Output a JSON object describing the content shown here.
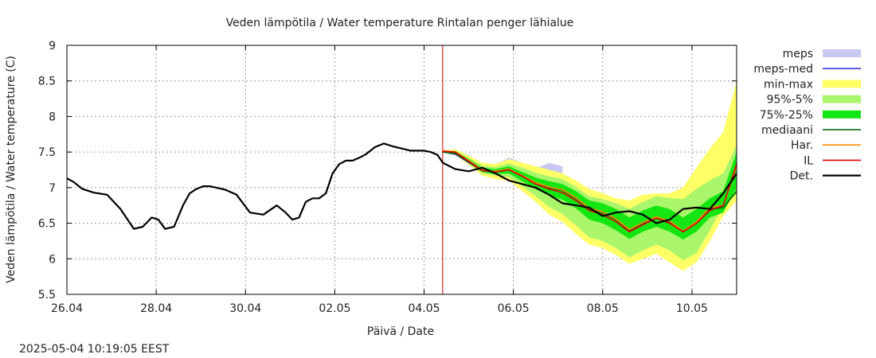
{
  "chart_data": {
    "type": "line",
    "title": "Veden lämpötila / Water temperature Rintalan penger lähialue",
    "xlabel": "Päivä / Date",
    "ylabel": "Veden lämpötila / Water temperature (C)",
    "timestamp": "2025-05-04 10:19:05 EEST",
    "x_ticks": [
      "26.04",
      "28.04",
      "30.04",
      "02.05",
      "04.05",
      "06.05",
      "08.05",
      "10.05"
    ],
    "y_ticks": [
      "5.5",
      "6",
      "6.5",
      "7",
      "7.5",
      "8",
      "8.5",
      "9"
    ],
    "xlim": [
      "2025-04-26",
      "2025-05-11"
    ],
    "ylim": [
      5.5,
      9
    ],
    "grid": true,
    "legend_position": "right",
    "forecast_start": "2025-05-04 10:00",
    "colors": {
      "meps": "#c8c8f0",
      "meps_med": "#3a3ad0",
      "minmax": "#ffff66",
      "p95_5": "#a9f56b",
      "p75_25": "#13e613",
      "median": "#006400",
      "har": "#ff8c00",
      "il": "#dd0000",
      "det": "#000000",
      "forecast_line": "#cc0000"
    },
    "legend": [
      {
        "key": "meps",
        "label": "meps",
        "kind": "band"
      },
      {
        "key": "meps_med",
        "label": "meps-med",
        "kind": "line"
      },
      {
        "key": "minmax",
        "label": "min-max",
        "kind": "band"
      },
      {
        "key": "p95_5",
        "label": "95%-5%",
        "kind": "band"
      },
      {
        "key": "p75_25",
        "label": "75%-25%",
        "kind": "band"
      },
      {
        "key": "median",
        "label": "mediaani",
        "kind": "line"
      },
      {
        "key": "har",
        "label": "Har.",
        "kind": "line"
      },
      {
        "key": "il",
        "label": "IL",
        "kind": "line"
      },
      {
        "key": "det",
        "label": "Det.",
        "kind": "line"
      }
    ],
    "forecast_x": [
      8.42,
      8.7,
      9.0,
      9.3,
      9.6,
      9.9,
      10.2,
      10.5,
      10.8,
      11.1,
      11.4,
      11.7,
      12.0,
      12.3,
      12.6,
      12.9,
      13.2,
      13.5,
      13.8,
      14.1,
      14.4,
      14.7,
      15.0
    ],
    "series": [
      {
        "name": "Det.",
        "key": "det",
        "x": [
          0,
          0.15,
          0.35,
          0.6,
          0.9,
          1.2,
          1.5,
          1.7,
          1.9,
          2.05,
          2.2,
          2.4,
          2.6,
          2.75,
          2.9,
          3.05,
          3.2,
          3.35,
          3.55,
          3.8,
          4.1,
          4.4,
          4.7,
          4.9,
          5.05,
          5.2,
          5.35,
          5.5,
          5.65,
          5.8,
          5.95,
          6.1,
          6.25,
          6.4,
          6.55,
          6.7,
          6.9,
          7.1,
          7.3,
          7.5,
          7.7,
          7.85,
          8.0,
          8.15,
          8.3,
          8.42,
          8.7,
          9.0,
          9.3,
          9.6,
          9.9,
          10.2,
          10.5,
          10.8,
          11.1,
          11.4,
          11.7,
          12.0,
          12.3,
          12.6,
          12.9,
          13.2,
          13.5,
          13.8,
          14.1,
          14.4,
          14.7,
          15.0
        ],
        "y": [
          7.13,
          7.08,
          6.98,
          6.93,
          6.9,
          6.7,
          6.42,
          6.45,
          6.58,
          6.55,
          6.42,
          6.45,
          6.75,
          6.92,
          6.98,
          7.02,
          7.02,
          7.0,
          6.97,
          6.9,
          6.65,
          6.62,
          6.75,
          6.65,
          6.55,
          6.58,
          6.8,
          6.85,
          6.85,
          6.92,
          7.2,
          7.33,
          7.38,
          7.38,
          7.42,
          7.47,
          7.57,
          7.62,
          7.58,
          7.55,
          7.52,
          7.52,
          7.52,
          7.5,
          7.46,
          7.35,
          7.26,
          7.23,
          7.28,
          7.2,
          7.1,
          7.05,
          7.0,
          6.9,
          6.78,
          6.75,
          6.72,
          6.6,
          6.65,
          6.67,
          6.62,
          6.5,
          6.55,
          6.7,
          6.72,
          6.7,
          6.92,
          7.2
        ]
      },
      {
        "name": "mediaani",
        "key": "median",
        "x": [
          8.42,
          8.7,
          9.0,
          9.3,
          9.6,
          9.9,
          10.2,
          10.5,
          10.8,
          11.1,
          11.4,
          11.7,
          12.0,
          12.3,
          12.6,
          12.9,
          13.2,
          13.5,
          13.8,
          14.1,
          14.4,
          14.7,
          15.0
        ],
        "y": [
          7.5,
          7.48,
          7.36,
          7.24,
          7.22,
          7.25,
          7.16,
          7.06,
          7.0,
          6.96,
          6.85,
          6.7,
          6.65,
          6.55,
          6.4,
          6.5,
          6.58,
          6.52,
          6.38,
          6.5,
          6.7,
          6.72,
          6.95
        ]
      },
      {
        "name": "Har.",
        "key": "har",
        "x": [
          8.42,
          8.7,
          9.0,
          9.3,
          9.6,
          9.9,
          10.2,
          10.5,
          10.8,
          11.1,
          11.4,
          11.7,
          12.0,
          12.3,
          12.6,
          12.9,
          13.2,
          13.5,
          13.8,
          14.1,
          14.4,
          14.7,
          15.0
        ],
        "y": [
          7.52,
          7.5,
          7.38,
          7.25,
          7.23,
          7.26,
          7.17,
          7.07,
          7.01,
          6.97,
          6.86,
          6.71,
          6.66,
          6.56,
          6.41,
          6.51,
          6.59,
          6.53,
          6.39,
          6.52,
          6.72,
          6.75,
          7.3
        ]
      },
      {
        "name": "IL",
        "key": "il",
        "x": [
          8.42,
          8.7,
          9.0,
          9.3,
          9.6,
          9.9,
          10.2,
          10.5,
          10.8,
          11.1,
          11.4,
          11.7,
          12.0,
          12.3,
          12.6,
          12.9,
          13.2,
          13.5,
          13.8,
          14.1,
          14.4,
          14.7,
          15.0
        ],
        "y": [
          7.51,
          7.5,
          7.37,
          7.24,
          7.22,
          7.25,
          7.16,
          7.05,
          6.98,
          6.93,
          6.82,
          6.68,
          6.62,
          6.52,
          6.38,
          6.48,
          6.57,
          6.5,
          6.38,
          6.5,
          6.68,
          6.75,
          7.33
        ]
      },
      {
        "name": "meps-med",
        "key": "meps_med",
        "x": [
          8.42,
          8.7,
          9.0,
          9.3,
          9.6,
          9.9,
          10.2,
          10.5,
          10.8
        ],
        "y": [
          7.5,
          7.47,
          7.35,
          7.24,
          7.22,
          7.25,
          7.16,
          7.06,
          7.0
        ]
      }
    ],
    "bands": [
      {
        "name": "meps",
        "key": "meps",
        "x": [
          8.42,
          8.7,
          9.0,
          9.3,
          9.6,
          9.9,
          10.2,
          10.5,
          10.8,
          11.1
        ],
        "lower": [
          7.5,
          7.45,
          7.34,
          7.22,
          7.2,
          7.23,
          7.14,
          7.05,
          7.0,
          6.95
        ],
        "upper": [
          7.51,
          7.52,
          7.42,
          7.3,
          7.33,
          7.42,
          7.35,
          7.27,
          7.35,
          7.3
        ]
      },
      {
        "name": "min-max",
        "key": "minmax",
        "x": [
          8.42,
          8.7,
          9.0,
          9.3,
          9.6,
          9.9,
          10.2,
          10.5,
          10.8,
          11.1,
          11.4,
          11.7,
          12.0,
          12.3,
          12.6,
          12.9,
          13.2,
          13.5,
          13.8,
          14.1,
          14.4,
          14.7,
          15.0
        ],
        "lower": [
          7.5,
          7.46,
          7.32,
          7.17,
          7.12,
          7.1,
          6.95,
          6.8,
          6.62,
          6.52,
          6.35,
          6.2,
          6.15,
          6.05,
          5.93,
          6.0,
          6.07,
          5.95,
          5.83,
          5.95,
          6.25,
          6.6,
          6.82
        ],
        "upper": [
          7.52,
          7.54,
          7.45,
          7.35,
          7.33,
          7.4,
          7.35,
          7.3,
          7.25,
          7.2,
          7.1,
          6.98,
          6.92,
          6.85,
          6.82,
          6.9,
          6.92,
          6.92,
          7.0,
          7.28,
          7.55,
          7.78,
          8.5
        ]
      },
      {
        "name": "95%-5%",
        "key": "p95_5",
        "x": [
          8.42,
          8.7,
          9.0,
          9.3,
          9.6,
          9.9,
          10.2,
          10.5,
          10.8,
          11.1,
          11.4,
          11.7,
          12.0,
          12.3,
          12.6,
          12.9,
          13.2,
          13.5,
          13.8,
          14.1,
          14.4,
          14.7,
          15.0
        ],
        "lower": [
          7.5,
          7.47,
          7.34,
          7.2,
          7.17,
          7.15,
          7.02,
          6.88,
          6.73,
          6.63,
          6.47,
          6.3,
          6.25,
          6.15,
          6.02,
          6.12,
          6.2,
          6.12,
          5.98,
          6.08,
          6.4,
          6.75,
          6.9
        ],
        "upper": [
          7.51,
          7.52,
          7.42,
          7.31,
          7.29,
          7.34,
          7.28,
          7.21,
          7.16,
          7.12,
          7.01,
          6.88,
          6.84,
          6.78,
          6.7,
          6.8,
          6.88,
          6.85,
          6.84,
          6.98,
          7.1,
          7.2,
          7.6
        ]
      },
      {
        "name": "75%-25%",
        "key": "p75_25",
        "x": [
          8.42,
          8.7,
          9.0,
          9.3,
          9.6,
          9.9,
          10.2,
          10.5,
          10.8,
          11.1,
          11.4,
          11.7,
          12.0,
          12.3,
          12.6,
          12.9,
          13.2,
          13.5,
          13.8,
          14.1,
          14.4,
          14.7,
          15.0
        ],
        "lower": [
          7.5,
          7.47,
          7.35,
          7.22,
          7.19,
          7.2,
          7.09,
          6.98,
          6.89,
          6.83,
          6.71,
          6.55,
          6.5,
          6.4,
          6.28,
          6.38,
          6.45,
          6.38,
          6.27,
          6.38,
          6.58,
          6.65,
          7.0
        ],
        "upper": [
          7.51,
          7.51,
          7.4,
          7.28,
          7.26,
          7.3,
          7.22,
          7.14,
          7.09,
          7.05,
          6.95,
          6.82,
          6.78,
          6.7,
          6.58,
          6.68,
          6.75,
          6.7,
          6.58,
          6.7,
          6.85,
          6.95,
          7.5
        ]
      }
    ]
  }
}
